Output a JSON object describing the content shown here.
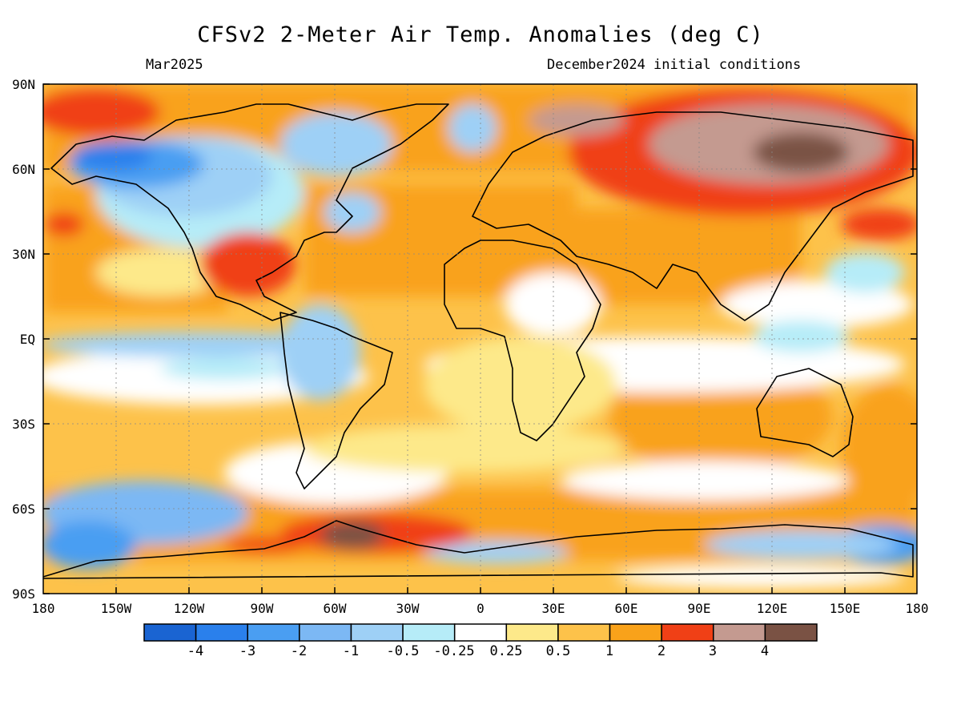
{
  "title": "CFSv2 2-Meter Air Temp. Anomalies (deg C)",
  "valid_month": "Mar2025",
  "initial_conditions": "December2024 initial conditions",
  "lat_labels": [
    "90N",
    "60N",
    "30N",
    "EQ",
    "30S",
    "60S",
    "90S"
  ],
  "lon_labels": [
    "180",
    "150W",
    "120W",
    "90W",
    "60W",
    "30W",
    "0",
    "30E",
    "60E",
    "90E",
    "120E",
    "150E",
    "180"
  ],
  "legend": {
    "colors": [
      "#1a64d2",
      "#2a80ec",
      "#4a9ef2",
      "#7cb8f4",
      "#9ed0f6",
      "#b6ecf8",
      "#ffffff",
      "#fde98a",
      "#fdc24a",
      "#f9a21a",
      "#f04016",
      "#c49a90",
      "#7a5244"
    ],
    "labels": [
      "-4",
      "-3",
      "-2",
      "-1",
      "-0.5",
      "-0.25",
      "0.25",
      "0.5",
      "1",
      "2",
      "3",
      "4"
    ]
  }
}
